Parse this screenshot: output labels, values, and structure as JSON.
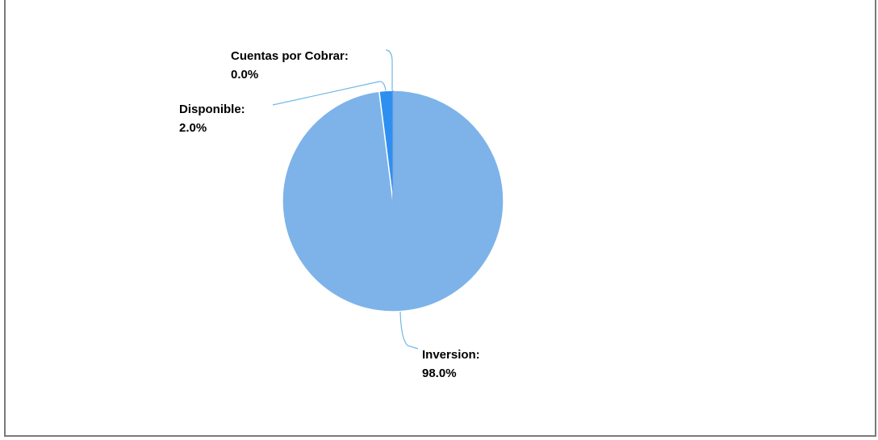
{
  "chart_data": {
    "type": "pie",
    "title": "",
    "slices": [
      {
        "label": "Inversion:",
        "percent_text": "98.0%",
        "value": 98.0,
        "color": "#7db3e8"
      },
      {
        "label": "Disponible:",
        "percent_text": "2.0%",
        "value": 2.0,
        "color": "#2f8ff0"
      },
      {
        "label": "Cuentas por Cobrar:",
        "percent_text": "0.0%",
        "value": 0.0,
        "color": "#1a6fd6"
      }
    ],
    "legend": "none",
    "leader_line_color": "#6fb7e6"
  }
}
